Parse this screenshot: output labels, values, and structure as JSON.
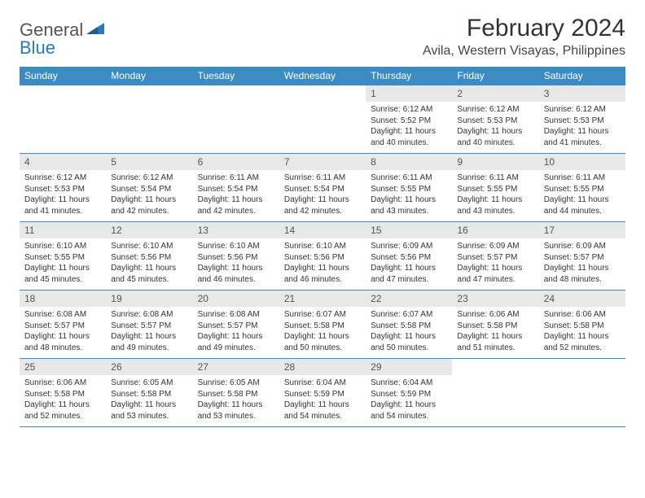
{
  "logo": {
    "general": "General",
    "blue": "Blue"
  },
  "title": "February 2024",
  "location": "Avila, Western Visayas, Philippines",
  "colors": {
    "header_bg": "#3b8bc4",
    "header_text": "#ffffff",
    "daynum_bg": "#e8e8e8",
    "grid_line": "#3b8bc4",
    "logo_blue": "#2a7ab8",
    "body_text": "#333333"
  },
  "weekdays": [
    "Sunday",
    "Monday",
    "Tuesday",
    "Wednesday",
    "Thursday",
    "Friday",
    "Saturday"
  ],
  "weeks": [
    [
      null,
      null,
      null,
      null,
      {
        "n": "1",
        "sr": "6:12 AM",
        "ss": "5:52 PM",
        "dl": "11 hours and 40 minutes."
      },
      {
        "n": "2",
        "sr": "6:12 AM",
        "ss": "5:53 PM",
        "dl": "11 hours and 40 minutes."
      },
      {
        "n": "3",
        "sr": "6:12 AM",
        "ss": "5:53 PM",
        "dl": "11 hours and 41 minutes."
      }
    ],
    [
      {
        "n": "4",
        "sr": "6:12 AM",
        "ss": "5:53 PM",
        "dl": "11 hours and 41 minutes."
      },
      {
        "n": "5",
        "sr": "6:12 AM",
        "ss": "5:54 PM",
        "dl": "11 hours and 42 minutes."
      },
      {
        "n": "6",
        "sr": "6:11 AM",
        "ss": "5:54 PM",
        "dl": "11 hours and 42 minutes."
      },
      {
        "n": "7",
        "sr": "6:11 AM",
        "ss": "5:54 PM",
        "dl": "11 hours and 42 minutes."
      },
      {
        "n": "8",
        "sr": "6:11 AM",
        "ss": "5:55 PM",
        "dl": "11 hours and 43 minutes."
      },
      {
        "n": "9",
        "sr": "6:11 AM",
        "ss": "5:55 PM",
        "dl": "11 hours and 43 minutes."
      },
      {
        "n": "10",
        "sr": "6:11 AM",
        "ss": "5:55 PM",
        "dl": "11 hours and 44 minutes."
      }
    ],
    [
      {
        "n": "11",
        "sr": "6:10 AM",
        "ss": "5:55 PM",
        "dl": "11 hours and 45 minutes."
      },
      {
        "n": "12",
        "sr": "6:10 AM",
        "ss": "5:56 PM",
        "dl": "11 hours and 45 minutes."
      },
      {
        "n": "13",
        "sr": "6:10 AM",
        "ss": "5:56 PM",
        "dl": "11 hours and 46 minutes."
      },
      {
        "n": "14",
        "sr": "6:10 AM",
        "ss": "5:56 PM",
        "dl": "11 hours and 46 minutes."
      },
      {
        "n": "15",
        "sr": "6:09 AM",
        "ss": "5:56 PM",
        "dl": "11 hours and 47 minutes."
      },
      {
        "n": "16",
        "sr": "6:09 AM",
        "ss": "5:57 PM",
        "dl": "11 hours and 47 minutes."
      },
      {
        "n": "17",
        "sr": "6:09 AM",
        "ss": "5:57 PM",
        "dl": "11 hours and 48 minutes."
      }
    ],
    [
      {
        "n": "18",
        "sr": "6:08 AM",
        "ss": "5:57 PM",
        "dl": "11 hours and 48 minutes."
      },
      {
        "n": "19",
        "sr": "6:08 AM",
        "ss": "5:57 PM",
        "dl": "11 hours and 49 minutes."
      },
      {
        "n": "20",
        "sr": "6:08 AM",
        "ss": "5:57 PM",
        "dl": "11 hours and 49 minutes."
      },
      {
        "n": "21",
        "sr": "6:07 AM",
        "ss": "5:58 PM",
        "dl": "11 hours and 50 minutes."
      },
      {
        "n": "22",
        "sr": "6:07 AM",
        "ss": "5:58 PM",
        "dl": "11 hours and 50 minutes."
      },
      {
        "n": "23",
        "sr": "6:06 AM",
        "ss": "5:58 PM",
        "dl": "11 hours and 51 minutes."
      },
      {
        "n": "24",
        "sr": "6:06 AM",
        "ss": "5:58 PM",
        "dl": "11 hours and 52 minutes."
      }
    ],
    [
      {
        "n": "25",
        "sr": "6:06 AM",
        "ss": "5:58 PM",
        "dl": "11 hours and 52 minutes."
      },
      {
        "n": "26",
        "sr": "6:05 AM",
        "ss": "5:58 PM",
        "dl": "11 hours and 53 minutes."
      },
      {
        "n": "27",
        "sr": "6:05 AM",
        "ss": "5:58 PM",
        "dl": "11 hours and 53 minutes."
      },
      {
        "n": "28",
        "sr": "6:04 AM",
        "ss": "5:59 PM",
        "dl": "11 hours and 54 minutes."
      },
      {
        "n": "29",
        "sr": "6:04 AM",
        "ss": "5:59 PM",
        "dl": "11 hours and 54 minutes."
      },
      null,
      null
    ]
  ],
  "labels": {
    "sunrise": "Sunrise: ",
    "sunset": "Sunset: ",
    "daylight": "Daylight: "
  }
}
